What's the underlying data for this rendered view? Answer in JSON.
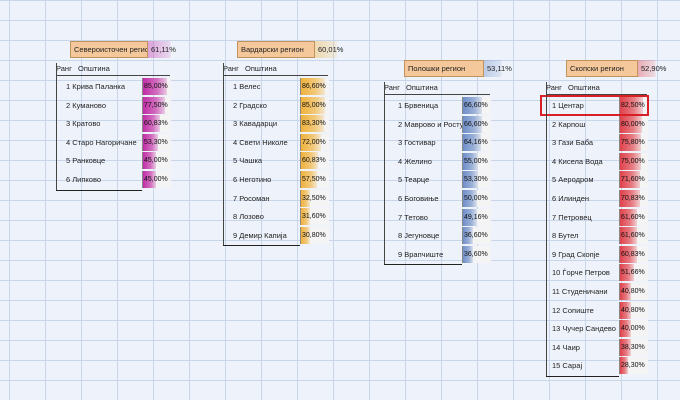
{
  "colors": {
    "northeast": "#c12da5",
    "vardar": "#f0b23c",
    "polog": "#6f8fc9",
    "skopje": "#e0414b",
    "highlight": "#d81f26"
  },
  "header": {
    "rank": "Ранг",
    "municipality": "Општина"
  },
  "regions": [
    {
      "id": "northeast",
      "name": "Североисточен регион",
      "pct": "61,11%",
      "pct_value": 61.11,
      "rows": [
        {
          "rank": "1",
          "name": "Крива Паланка",
          "value": "85,00%",
          "v": 85.0
        },
        {
          "rank": "2",
          "name": "Куманово",
          "value": "77,50%",
          "v": 77.5
        },
        {
          "rank": "3",
          "name": "Кратово",
          "value": "60,83%",
          "v": 60.83
        },
        {
          "rank": "4",
          "name": "Старо Нагоричане",
          "value": "53,30%",
          "v": 53.3
        },
        {
          "rank": "5",
          "name": "Ранковце",
          "value": "45,00%",
          "v": 45.0
        },
        {
          "rank": "6",
          "name": "Липково",
          "value": "45,00%",
          "v": 45.0
        }
      ]
    },
    {
      "id": "vardar",
      "name": "Вардарски регион",
      "pct": "60,01%",
      "pct_value": 60.01,
      "rows": [
        {
          "rank": "1",
          "name": "Велес",
          "value": "86,60%",
          "v": 86.6
        },
        {
          "rank": "2",
          "name": "Градско",
          "value": "85,00%",
          "v": 85.0
        },
        {
          "rank": "3",
          "name": "Кавадарци",
          "value": "83,30%",
          "v": 83.3
        },
        {
          "rank": "4",
          "name": "Свети Николе",
          "value": "72,00%",
          "v": 72.0
        },
        {
          "rank": "5",
          "name": "Чашка",
          "value": "60,83%",
          "v": 60.83
        },
        {
          "rank": "6",
          "name": "Неготино",
          "value": "57,50%",
          "v": 57.5
        },
        {
          "rank": "7",
          "name": "Росоман",
          "value": "32,50%",
          "v": 32.5
        },
        {
          "rank": "8",
          "name": "Лозово",
          "value": "31,60%",
          "v": 31.6
        },
        {
          "rank": "9",
          "name": "Демир Капија",
          "value": "30,80%",
          "v": 30.8
        }
      ]
    },
    {
      "id": "polog",
      "name": "Полошки регион",
      "pct": "53,11%",
      "pct_value": 53.11,
      "rows": [
        {
          "rank": "1",
          "name": "Брвеница",
          "value": "66,60%",
          "v": 66.6
        },
        {
          "rank": "2",
          "name": "Маврово и Ростуше",
          "value": "66,60%",
          "v": 66.6
        },
        {
          "rank": "3",
          "name": "Гостивар",
          "value": "64,16%",
          "v": 64.16
        },
        {
          "rank": "4",
          "name": "Желино",
          "value": "55,00%",
          "v": 55.0
        },
        {
          "rank": "5",
          "name": "Теарце",
          "value": "53,30%",
          "v": 53.3
        },
        {
          "rank": "6",
          "name": "Боговиње",
          "value": "50,00%",
          "v": 50.0
        },
        {
          "rank": "7",
          "name": "Тетово",
          "value": "49,16%",
          "v": 49.16
        },
        {
          "rank": "8",
          "name": "Јегуновце",
          "value": "36,60%",
          "v": 36.6
        },
        {
          "rank": "9",
          "name": "Врапчиште",
          "value": "36,60%",
          "v": 36.6
        }
      ]
    },
    {
      "id": "skopje",
      "name": "Скопски регион",
      "pct": "52,90%",
      "pct_value": 52.9,
      "rows": [
        {
          "rank": "1",
          "name": "Центар",
          "value": "82,50%",
          "v": 82.5,
          "highlight": true
        },
        {
          "rank": "2",
          "name": "Карпош",
          "value": "80,00%",
          "v": 80.0
        },
        {
          "rank": "3",
          "name": "Гази Баба",
          "value": "75,80%",
          "v": 75.8
        },
        {
          "rank": "4",
          "name": "Кисела Вода",
          "value": "75,00%",
          "v": 75.0
        },
        {
          "rank": "5",
          "name": "Аеродром",
          "value": "71,60%",
          "v": 71.6
        },
        {
          "rank": "6",
          "name": "Илинден",
          "value": "70,83%",
          "v": 70.83
        },
        {
          "rank": "7",
          "name": "Петровец",
          "value": "61,60%",
          "v": 61.6
        },
        {
          "rank": "8",
          "name": "Бутел",
          "value": "61,60%",
          "v": 61.6
        },
        {
          "rank": "9",
          "name": "Град Скопје",
          "value": "60,83%",
          "v": 60.83
        },
        {
          "rank": "10",
          "name": "Ѓорче Петров",
          "value": "51,66%",
          "v": 51.66
        },
        {
          "rank": "11",
          "name": "Студеничани",
          "value": "40,80%",
          "v": 40.8
        },
        {
          "rank": "12",
          "name": "Сопиште",
          "value": "40,80%",
          "v": 40.8
        },
        {
          "rank": "13",
          "name": "Чучер Сандево",
          "value": "40,00%",
          "v": 40.0
        },
        {
          "rank": "14",
          "name": "Чаир",
          "value": "38,30%",
          "v": 38.3
        },
        {
          "rank": "15",
          "name": "Сарај",
          "value": "28,30%",
          "v": 28.3
        }
      ]
    }
  ]
}
